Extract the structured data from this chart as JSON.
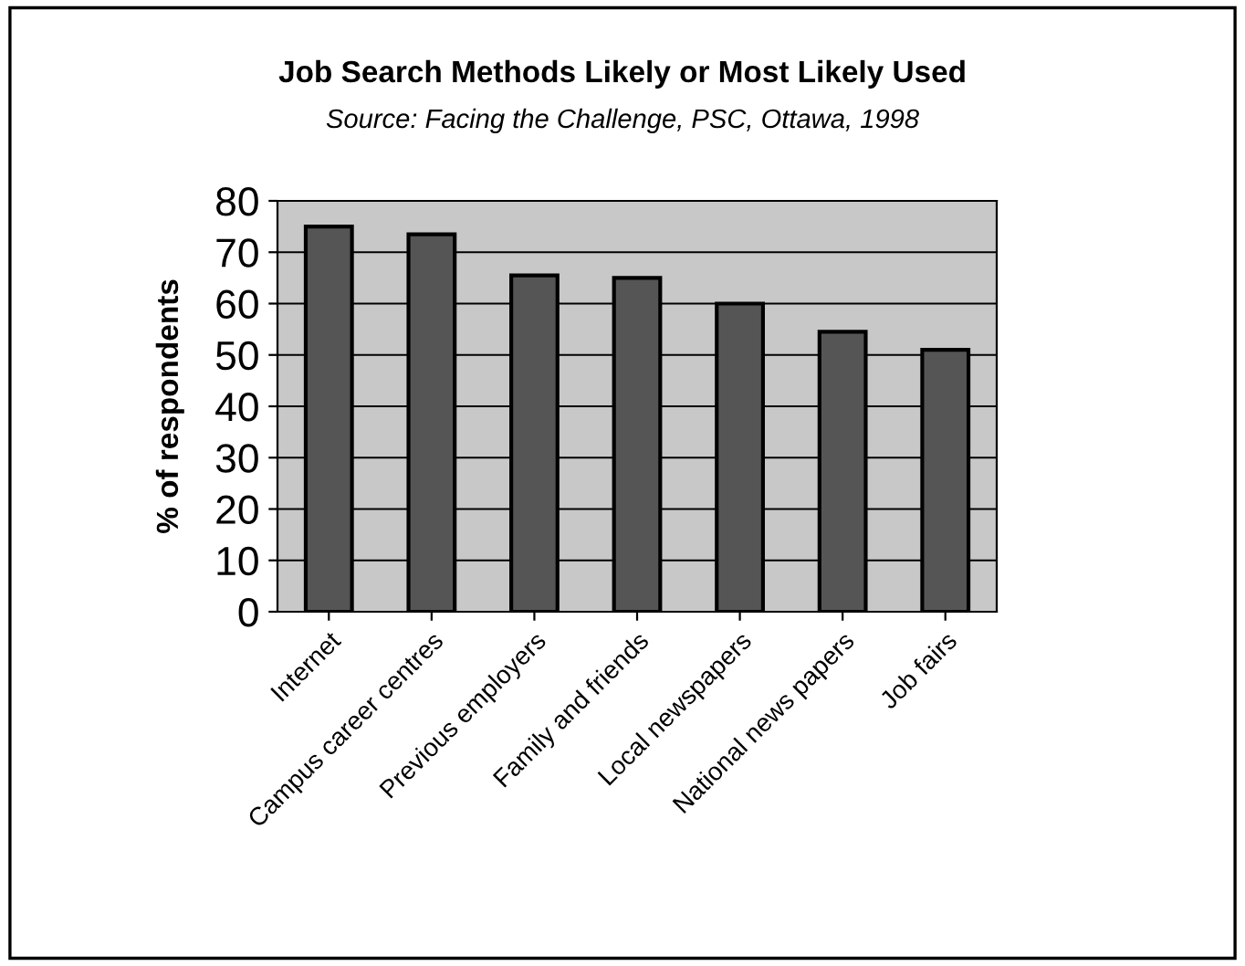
{
  "chart_data": {
    "type": "bar",
    "title": "Job Search Methods Likely or Most Likely Used",
    "subtitle": "Source: Facing the Challenge, PSC, Ottawa, 1998",
    "ylabel": "% of respondents",
    "categories": [
      "Internet",
      "Campus career centres",
      "Previous employers",
      "Family and friends",
      "Local newspapers",
      "National news papers",
      "Job fairs"
    ],
    "values": [
      75,
      73.5,
      65.5,
      65,
      60,
      54.5,
      51
    ],
    "color": "#555555",
    "ylim": [
      0,
      80
    ],
    "yticks": [
      0,
      10,
      20,
      30,
      40,
      50,
      60,
      70,
      80
    ],
    "grid": "y"
  }
}
